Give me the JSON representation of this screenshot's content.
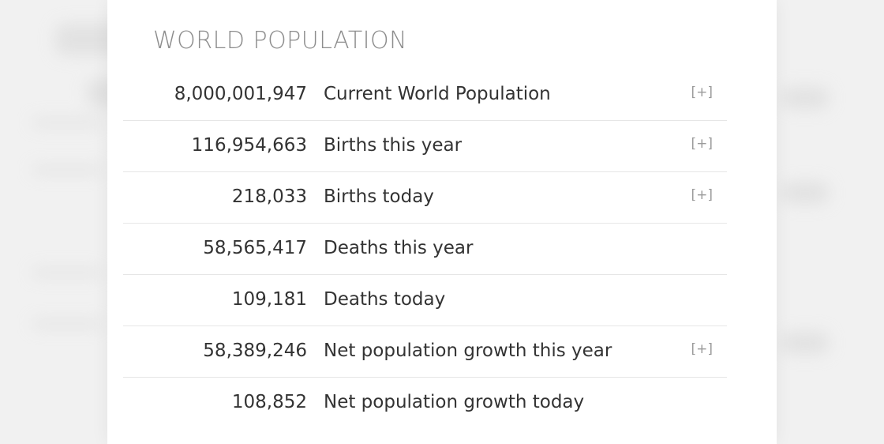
{
  "section": {
    "title": "WORLD POPULATION"
  },
  "rows": [
    {
      "value": "8,000,001,947",
      "label": "Current World Population",
      "expand": "[+]"
    },
    {
      "value": "116,954,663",
      "label": "Births this year",
      "expand": "[+]"
    },
    {
      "value": "218,033",
      "label": "Births today",
      "expand": "[+]"
    },
    {
      "value": "58,565,417",
      "label": "Deaths this year",
      "expand": ""
    },
    {
      "value": "109,181",
      "label": "Deaths today",
      "expand": ""
    },
    {
      "value": "58,389,246",
      "label": "Net population growth this year",
      "expand": "[+]"
    },
    {
      "value": "108,852",
      "label": "Net population growth today",
      "expand": ""
    }
  ]
}
